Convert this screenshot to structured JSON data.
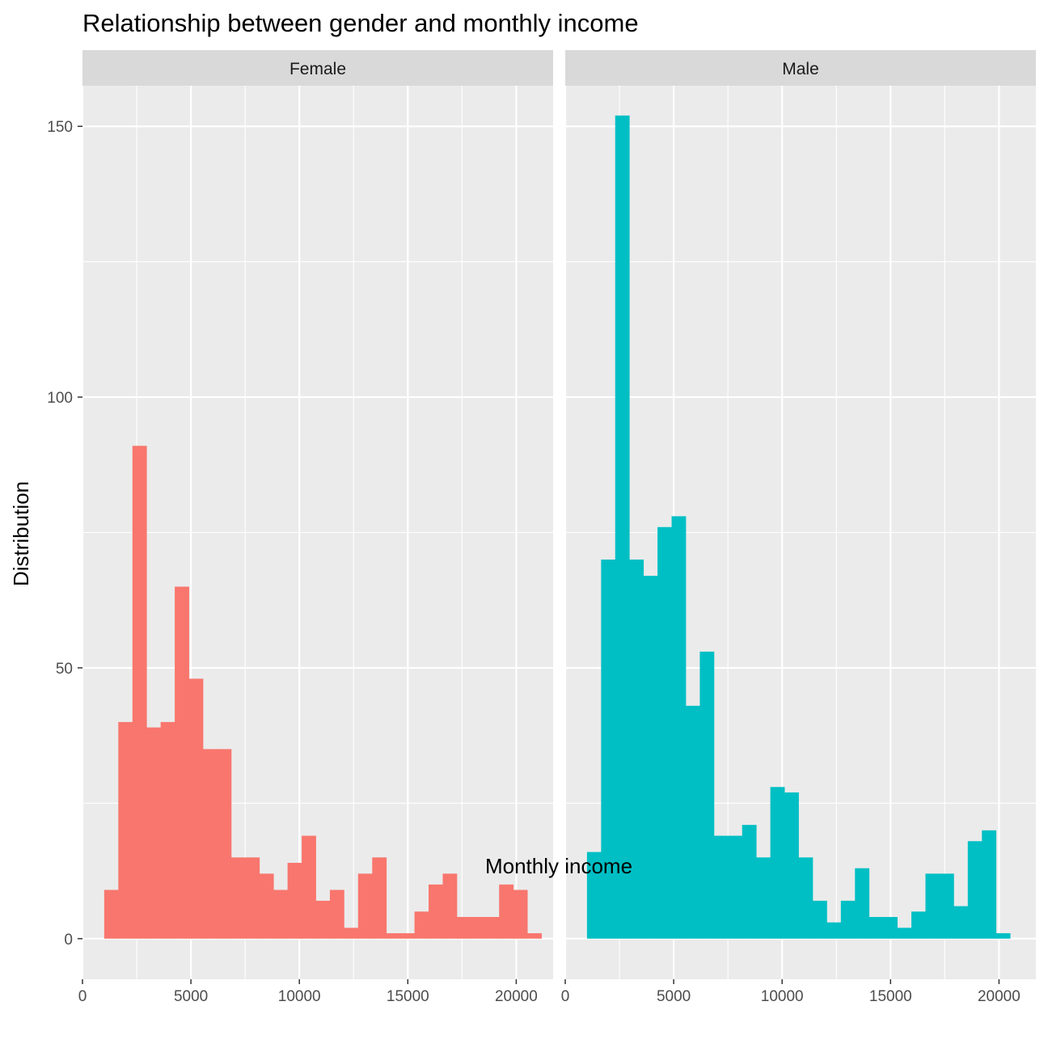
{
  "chart_data": {
    "type": "bar",
    "title": "Relationship between gender and monthly income",
    "xlabel": "Monthly income",
    "ylabel": "Distribution",
    "xlim": [
      0,
      21700
    ],
    "ylim": [
      -7.5,
      157.5
    ],
    "x_ticks": [
      0,
      5000,
      10000,
      15000,
      20000
    ],
    "y_ticks": [
      0,
      50,
      100,
      150
    ],
    "grid": true,
    "legend": "none",
    "bin_start": 1002.5,
    "bin_width": 650.3,
    "series": [
      {
        "name": "Female",
        "color": "#F8766D",
        "values": [
          9,
          40,
          91,
          39,
          40,
          65,
          48,
          35,
          35,
          15,
          15,
          12,
          9,
          14,
          19,
          7,
          9,
          2,
          12,
          15,
          1,
          1,
          5,
          10,
          12,
          4,
          4,
          4,
          10,
          9,
          1
        ]
      },
      {
        "name": "Male",
        "color": "#00BFC4",
        "values": [
          16,
          70,
          152,
          70,
          67,
          76,
          78,
          43,
          53,
          19,
          19,
          21,
          15,
          28,
          27,
          15,
          7,
          3,
          7,
          13,
          4,
          4,
          2,
          5,
          12,
          12,
          6,
          18,
          20,
          1
        ]
      }
    ]
  },
  "colors": {
    "panel_bg": "#EBEBEB",
    "strip_bg": "#D9D9D9",
    "grid": "#FFFFFF",
    "tick_text": "#4D4D4D"
  }
}
